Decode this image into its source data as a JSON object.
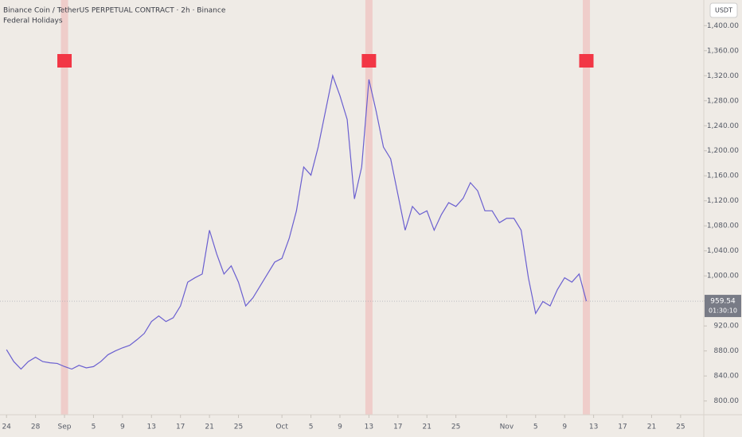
{
  "chart_data": {
    "type": "line",
    "title": "Binance Coin / TetherUS PERPETUAL CONTRACT · 2h · Binance",
    "indicator": "Federal Holidays",
    "currency": "USDT",
    "last_price": {
      "value": 959.54,
      "label": "959.54"
    },
    "countdown": "01:30:10",
    "x": [
      0,
      1,
      2,
      3,
      4,
      5,
      6,
      7,
      8,
      9,
      10,
      11,
      12,
      13,
      14,
      15,
      16,
      17,
      18,
      19,
      20,
      21,
      22,
      23,
      24,
      25,
      26,
      27,
      28,
      29,
      30,
      31,
      32,
      33,
      34,
      35,
      36,
      37,
      38,
      39,
      40,
      41,
      42,
      43,
      44,
      45,
      46,
      47,
      48,
      49,
      50,
      51,
      52,
      53,
      54,
      55,
      56,
      57,
      58,
      59,
      60,
      61,
      62,
      63,
      64,
      65,
      66,
      67,
      68,
      69,
      70,
      71,
      72,
      73,
      74,
      75,
      76,
      77,
      78,
      79,
      80
    ],
    "series": [
      {
        "color": "#6a5fd0",
        "values": [
          882,
          863,
          851,
          863,
          870,
          863,
          861,
          860,
          855,
          851,
          857,
          853,
          855,
          863,
          874,
          880,
          885,
          889,
          898,
          908,
          927,
          936,
          927,
          933,
          952,
          990,
          997,
          1003,
          1073,
          1035,
          1003,
          1016,
          990,
          952,
          965,
          984,
          1003,
          1022,
          1028,
          1060,
          1104,
          1174,
          1161,
          1206,
          1263,
          1320,
          1288,
          1250,
          1123,
          1174,
          1314,
          1263,
          1206,
          1187,
          1130,
          1073,
          1111,
          1098,
          1104,
          1073,
          1098,
          1117,
          1111,
          1124,
          1149,
          1136,
          1104,
          1104,
          1085,
          1092,
          1092,
          1073,
          997,
          940,
          959,
          952,
          978,
          997,
          990,
          1003,
          959.54
        ]
      }
    ],
    "holidays": [
      8,
      50,
      80
    ],
    "holiday_color": "#f0a8a8",
    "marker_color": "#f23645",
    "xlim": [
      -0.9,
      96.2
    ],
    "xticks": [
      {
        "value": 0,
        "label": "24"
      },
      {
        "value": 4,
        "label": "28"
      },
      {
        "value": 8,
        "label": "Sep"
      },
      {
        "value": 12,
        "label": "5"
      },
      {
        "value": 16,
        "label": "9"
      },
      {
        "value": 20,
        "label": "13"
      },
      {
        "value": 24,
        "label": "17"
      },
      {
        "value": 28,
        "label": "21"
      },
      {
        "value": 32,
        "label": "25"
      },
      {
        "value": 38,
        "label": "Oct"
      },
      {
        "value": 42,
        "label": "5"
      },
      {
        "value": 46,
        "label": "9"
      },
      {
        "value": 50,
        "label": "13"
      },
      {
        "value": 54,
        "label": "17"
      },
      {
        "value": 58,
        "label": "21"
      },
      {
        "value": 62,
        "label": "25"
      },
      {
        "value": 69,
        "label": "Nov"
      },
      {
        "value": 73,
        "label": "5"
      },
      {
        "value": 77,
        "label": "9"
      },
      {
        "value": 81,
        "label": "13"
      },
      {
        "value": 85,
        "label": "17"
      },
      {
        "value": 89,
        "label": "21"
      },
      {
        "value": 93,
        "label": "25"
      }
    ],
    "ylim": [
      778,
      1441
    ],
    "yticks": [
      {
        "value": 800,
        "label": "800.00"
      },
      {
        "value": 840,
        "label": "840.00"
      },
      {
        "value": 880,
        "label": "880.00"
      },
      {
        "value": 920,
        "label": "920.00"
      },
      {
        "value": 960,
        "label": "960.00"
      },
      {
        "value": 1000,
        "label": "1,000.00"
      },
      {
        "value": 1040,
        "label": "1,040.00"
      },
      {
        "value": 1080,
        "label": "1,080.00"
      },
      {
        "value": 1120,
        "label": "1,120.00"
      },
      {
        "value": 1160,
        "label": "1,160.00"
      },
      {
        "value": 1200,
        "label": "1,200.00"
      },
      {
        "value": 1240,
        "label": "1,240.00"
      },
      {
        "value": 1280,
        "label": "1,280.00"
      },
      {
        "value": 1320,
        "label": "1,320.00"
      },
      {
        "value": 1360,
        "label": "1,360.00"
      },
      {
        "value": 1400,
        "label": "1,400.00"
      }
    ]
  }
}
